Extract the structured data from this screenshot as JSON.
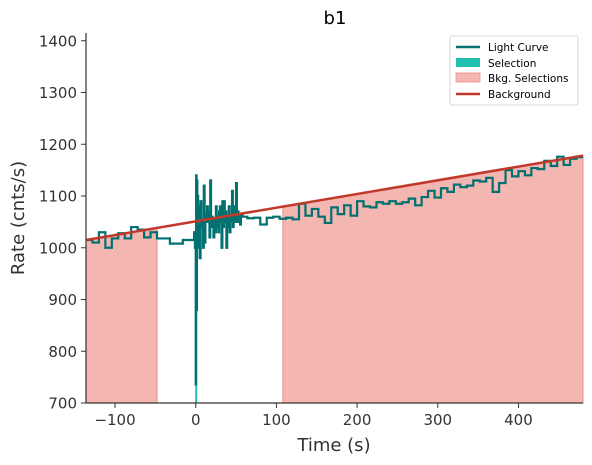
{
  "chart_data": {
    "type": "line",
    "title": "b1",
    "xlabel": "Time (s)",
    "ylabel": "Rate (cnts/s)",
    "xlim": [
      -136,
      480
    ],
    "ylim": [
      700,
      1415
    ],
    "x_ticks": [
      -100,
      0,
      100,
      200,
      300,
      400
    ],
    "x_tick_labels": [
      "−100",
      "0",
      "100",
      "200",
      "300",
      "400"
    ],
    "y_ticks": [
      700,
      800,
      900,
      1000,
      1100,
      1200,
      1300,
      1400
    ],
    "y_tick_labels": [
      "700",
      "800",
      "900",
      "1000",
      "1100",
      "1200",
      "1300",
      "1400"
    ],
    "grid": false,
    "legend_position": "top-right",
    "legend": [
      "Light Curve",
      "Selection",
      "Bkg. Selections",
      "Background"
    ],
    "colors": {
      "light_curve": "#007070",
      "selection": "#20c0b0",
      "bkg_selection_fill": "#f4b6b0",
      "bkg_selection_edge": "#f08c84",
      "background": "#c0392b"
    },
    "bkg_selections": [
      [
        -136,
        -48
      ],
      [
        108,
        480
      ]
    ],
    "selection": {
      "start": 0,
      "end": 2
    },
    "background_line": {
      "x": [
        -136,
        480
      ],
      "y": [
        1015,
        1178
      ]
    },
    "light_curve": {
      "x": [
        -136,
        -128,
        -120,
        -112,
        -104,
        -96,
        -88,
        -80,
        -72,
        -64,
        -56,
        -48,
        -40,
        -32,
        -24,
        -16,
        -8,
        -2,
        -1,
        0,
        0.5,
        1,
        1.5,
        2,
        2.5,
        3,
        3.5,
        4,
        5,
        6,
        7,
        8,
        9,
        10,
        11,
        12,
        13,
        14,
        15,
        16,
        17,
        18,
        19,
        20,
        21,
        22,
        23,
        24,
        25,
        26,
        27,
        28,
        29,
        30,
        31,
        32,
        33,
        34,
        35,
        36,
        37,
        38,
        39,
        40,
        41,
        42,
        43,
        44,
        45,
        46,
        47,
        48,
        49,
        50,
        51,
        52,
        53,
        54,
        55,
        56,
        58,
        64,
        72,
        80,
        88,
        96,
        104,
        112,
        120,
        128,
        136,
        144,
        152,
        160,
        168,
        176,
        184,
        192,
        200,
        208,
        216,
        224,
        232,
        240,
        248,
        256,
        264,
        272,
        280,
        288,
        296,
        304,
        312,
        320,
        328,
        336,
        344,
        352,
        360,
        368,
        376,
        384,
        392,
        400,
        408,
        416,
        424,
        432,
        440,
        448,
        456,
        464,
        472
      ],
      "y": [
        1015,
        1010,
        1030,
        1000,
        1018,
        1028,
        1018,
        1040,
        1035,
        1020,
        1030,
        1018,
        1018,
        1008,
        1008,
        1015,
        1015,
        1030,
        1000,
        735,
        1140,
        880,
        1130,
        1060,
        1100,
        1000,
        1020,
        1080,
        980,
        1090,
        1050,
        1040,
        1000,
        1120,
        1010,
        1050,
        1065,
        1080,
        1050,
        1070,
        1020,
        1130,
        1040,
        1060,
        1050,
        1020,
        1055,
        1030,
        1080,
        1040,
        1060,
        1030,
        1070,
        1080,
        1050,
        1000,
        1090,
        1040,
        1090,
        1050,
        1070,
        1000,
        1060,
        1040,
        1080,
        1030,
        1060,
        1050,
        1110,
        1040,
        1080,
        1060,
        1050,
        1125,
        1050,
        1070,
        1050,
        1060,
        1045,
        1065,
        1060,
        1057,
        1058,
        1045,
        1058,
        1060,
        1056,
        1058,
        1055,
        1085,
        1062,
        1075,
        1060,
        1048,
        1078,
        1065,
        1082,
        1062,
        1090,
        1080,
        1078,
        1088,
        1085,
        1090,
        1085,
        1088,
        1095,
        1082,
        1098,
        1110,
        1097,
        1115,
        1108,
        1122,
        1117,
        1120,
        1130,
        1128,
        1135,
        1108,
        1125,
        1150,
        1138,
        1148,
        1140,
        1154,
        1152,
        1168,
        1158,
        1176,
        1160,
        1172,
        1175
      ]
    }
  }
}
